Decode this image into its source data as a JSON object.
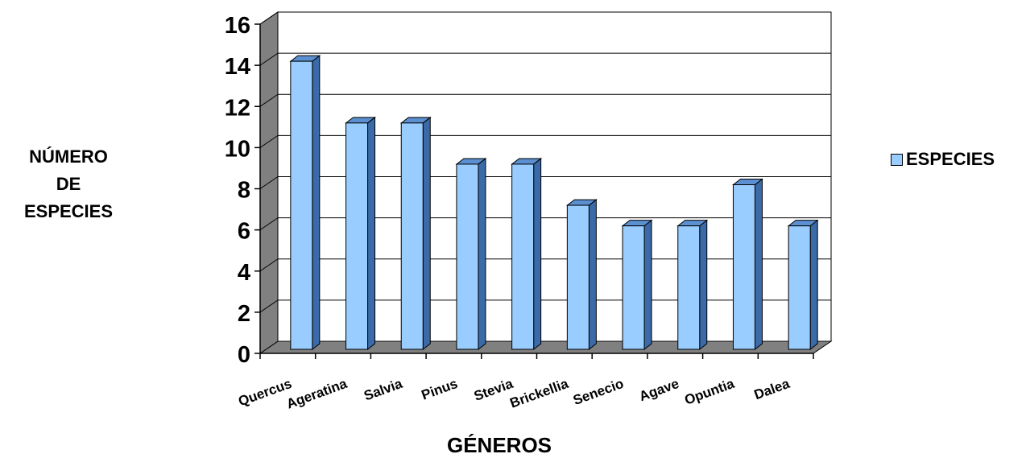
{
  "chart_data": {
    "type": "bar",
    "xlabel": "GÉNEROS",
    "ylabel": "NÚMERO\nDE\nESPECIES",
    "categories": [
      "Quercus",
      "Ageratina",
      "Salvia",
      "Pinus",
      "Stevia",
      "Brickellia",
      "Senecio",
      "Agave",
      "Opuntia",
      "Dalea"
    ],
    "series": [
      {
        "name": "ESPECIES",
        "values": [
          14,
          11,
          11,
          9,
          9,
          7,
          6,
          6,
          8,
          6
        ]
      }
    ],
    "ylim": [
      0,
      16
    ],
    "yticks": [
      0,
      2,
      4,
      6,
      8,
      10,
      12,
      14,
      16
    ],
    "grid": true,
    "legend_position": "right",
    "colors": {
      "bar_front": "#99ccff",
      "bar_side": "#3a6aa8",
      "bar_top": "#5b8fd0",
      "floor": "#808080",
      "wall": "#808080"
    }
  }
}
